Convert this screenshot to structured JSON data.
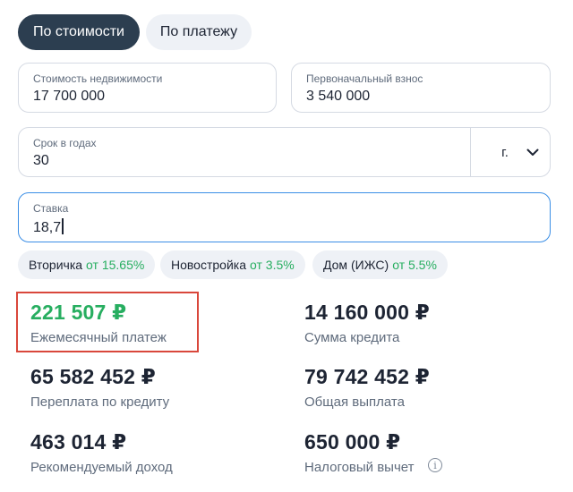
{
  "mode_toggle": {
    "by_cost": "По стоимости",
    "by_payment": "По платежу"
  },
  "fields": {
    "property_cost": {
      "label": "Стоимость недвижимости",
      "value": "17 700 000"
    },
    "down_payment": {
      "label": "Первоначальный взнос",
      "value": "3 540 000"
    },
    "term": {
      "label": "Срок в годах",
      "value": "30",
      "unit": "г."
    },
    "rate": {
      "label": "Ставка",
      "value": "18,7"
    }
  },
  "chips": [
    {
      "name": "Вторичка",
      "rate": "от 15.65%"
    },
    {
      "name": "Новостройка",
      "rate": "от 3.5%"
    },
    {
      "name": "Дом (ИЖС)",
      "rate": "от 5.5%"
    }
  ],
  "results": {
    "monthly_payment": {
      "value": "221 507 ₽",
      "label": "Ежемесячный платеж"
    },
    "loan_amount": {
      "value": "14 160 000 ₽",
      "label": "Сумма кредита"
    },
    "overpayment": {
      "value": "65 582 452 ₽",
      "label": "Переплата по кредиту"
    },
    "total_payment": {
      "value": "79 742 452 ₽",
      "label": "Общая выплата"
    },
    "recommended_income": {
      "value": "463 014 ₽",
      "label": "Рекомендуемый доход"
    },
    "tax_deduction": {
      "value": "650 000 ₽",
      "label": "Налоговый вычет"
    }
  },
  "icons": {
    "unit_chevron": "chevron-down-icon",
    "tax_info": "info-icon"
  },
  "colors": {
    "active_toggle": "#2c3e50",
    "accent_green": "#27ae60",
    "focus_blue": "#3a8ee6",
    "highlight_red": "#d9473b"
  }
}
